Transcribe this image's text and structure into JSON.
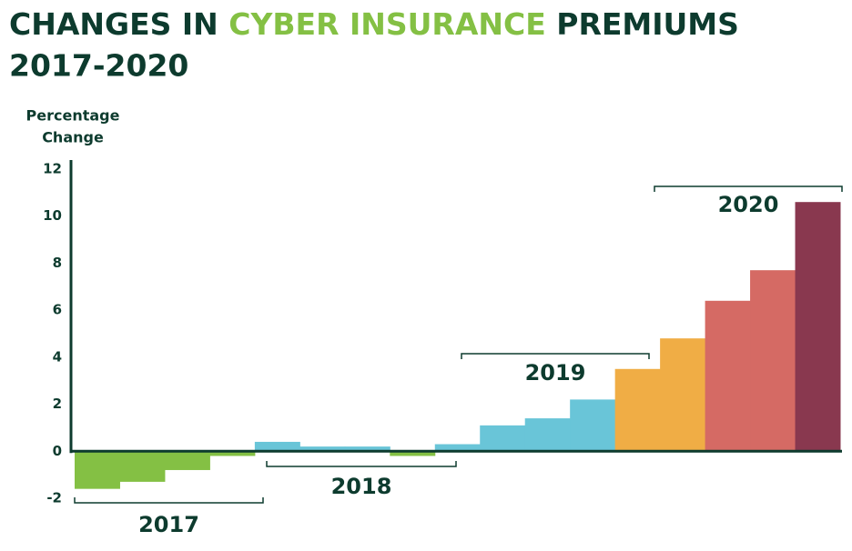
{
  "chart_data": {
    "type": "bar",
    "title_parts": [
      "CHANGES IN ",
      "CYBER INSURANCE",
      " PREMIUMS"
    ],
    "title_line2": "2017-2020",
    "y_label": [
      "Percentage",
      "Change"
    ],
    "categories": [
      null,
      null,
      null,
      null,
      null,
      null,
      null,
      null,
      null,
      null,
      null,
      null,
      null,
      null,
      null,
      null,
      null
    ],
    "values": [
      -1.6,
      -1.3,
      -0.8,
      -0.2,
      0.4,
      0.2,
      0.2,
      -0.2,
      0.3,
      1.1,
      1.4,
      2.2,
      3.5,
      4.8,
      6.4,
      7.7,
      10.6
    ],
    "colors": [
      "#84c044",
      "#84c044",
      "#84c044",
      "#84c044",
      "#69c5d8",
      "#69c5d8",
      "#69c5d8",
      "#84c044",
      "#69c5d8",
      "#69c5d8",
      "#69c5d8",
      "#69c5d8",
      "#f0ad45",
      "#f0ad45",
      "#d56a64",
      "#d56a64",
      "#89384f"
    ],
    "groups": [
      "2017",
      "2018",
      "2019",
      "2020"
    ],
    "ylim": [
      -2,
      12
    ],
    "yticks": [
      -2,
      0,
      2,
      4,
      6,
      8,
      10,
      12
    ]
  }
}
